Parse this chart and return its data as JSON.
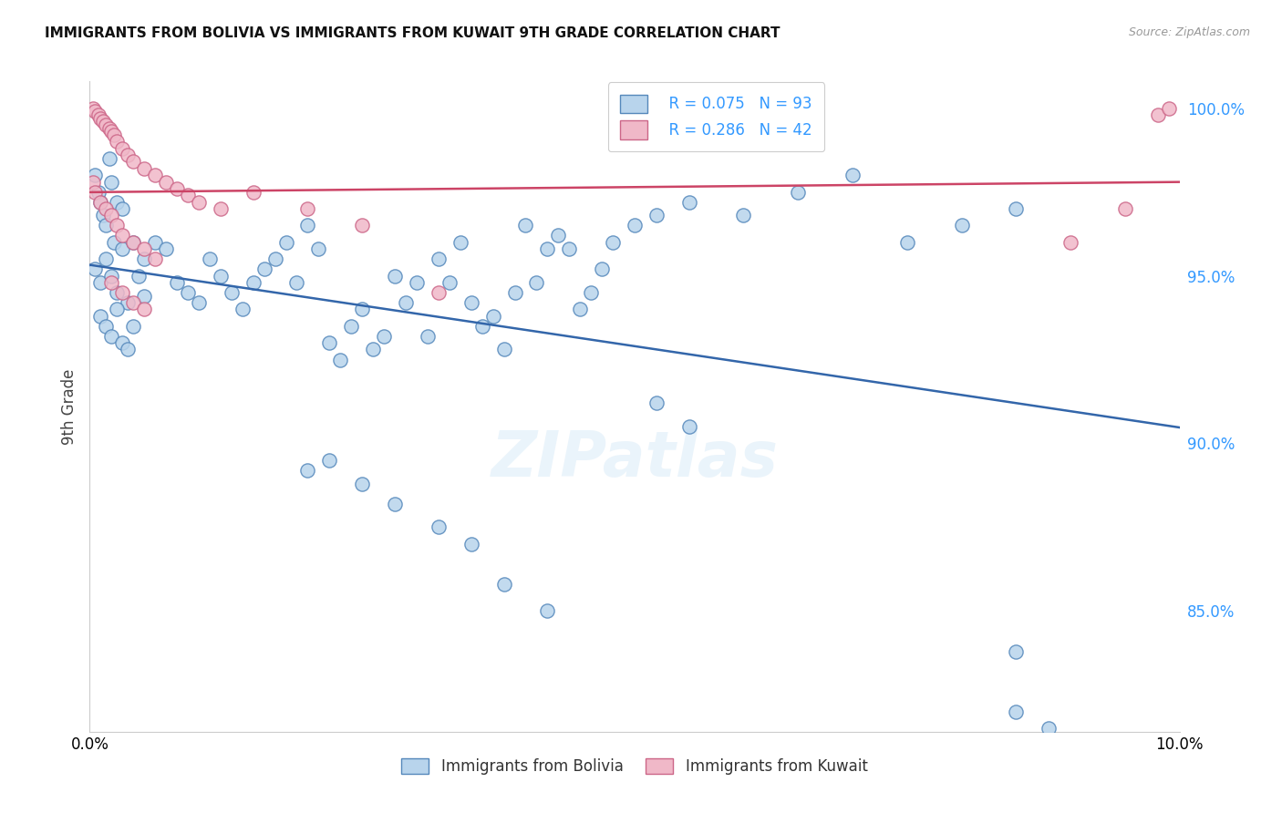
{
  "title": "IMMIGRANTS FROM BOLIVIA VS IMMIGRANTS FROM KUWAIT 9TH GRADE CORRELATION CHART",
  "source": "Source: ZipAtlas.com",
  "ylabel": "9th Grade",
  "x_min": 0.0,
  "x_max": 0.1,
  "y_min": 0.814,
  "y_max": 1.008,
  "y_ticks": [
    0.85,
    0.9,
    0.95,
    1.0
  ],
  "y_tick_labels": [
    "85.0%",
    "90.0%",
    "95.0%",
    "100.0%"
  ],
  "bolivia_color": "#b8d4ec",
  "bolivia_edge": "#5588bb",
  "bolivia_line": "#3366aa",
  "kuwait_color": "#f0b8c8",
  "kuwait_edge": "#cc6688",
  "kuwait_line": "#cc4466",
  "watermark": "ZIPatlas",
  "bolivia_R": 0.075,
  "bolivia_N": 93,
  "kuwait_R": 0.286,
  "kuwait_N": 42,
  "bolivia_x": [
    0.0005,
    0.0008,
    0.001,
    0.0012,
    0.0015,
    0.0018,
    0.002,
    0.0022,
    0.0025,
    0.003,
    0.0005,
    0.001,
    0.0015,
    0.002,
    0.0025,
    0.003,
    0.0035,
    0.004,
    0.0045,
    0.005,
    0.001,
    0.0015,
    0.002,
    0.0025,
    0.003,
    0.0035,
    0.004,
    0.005,
    0.006,
    0.007,
    0.008,
    0.009,
    0.01,
    0.011,
    0.012,
    0.013,
    0.014,
    0.015,
    0.016,
    0.017,
    0.018,
    0.019,
    0.02,
    0.021,
    0.022,
    0.023,
    0.024,
    0.025,
    0.026,
    0.027,
    0.028,
    0.029,
    0.03,
    0.031,
    0.032,
    0.033,
    0.034,
    0.035,
    0.036,
    0.037,
    0.038,
    0.039,
    0.04,
    0.041,
    0.042,
    0.043,
    0.044,
    0.045,
    0.046,
    0.047,
    0.048,
    0.05,
    0.052,
    0.055,
    0.06,
    0.065,
    0.07,
    0.075,
    0.08,
    0.085,
    0.052,
    0.055,
    0.02,
    0.022,
    0.025,
    0.028,
    0.032,
    0.035,
    0.038,
    0.042,
    0.085,
    0.085,
    0.088
  ],
  "bolivia_y": [
    0.98,
    0.975,
    0.972,
    0.968,
    0.965,
    0.985,
    0.978,
    0.96,
    0.972,
    0.97,
    0.952,
    0.948,
    0.955,
    0.95,
    0.945,
    0.958,
    0.942,
    0.96,
    0.95,
    0.944,
    0.938,
    0.935,
    0.932,
    0.94,
    0.93,
    0.928,
    0.935,
    0.955,
    0.96,
    0.958,
    0.948,
    0.945,
    0.942,
    0.955,
    0.95,
    0.945,
    0.94,
    0.948,
    0.952,
    0.955,
    0.96,
    0.948,
    0.965,
    0.958,
    0.93,
    0.925,
    0.935,
    0.94,
    0.928,
    0.932,
    0.95,
    0.942,
    0.948,
    0.932,
    0.955,
    0.948,
    0.96,
    0.942,
    0.935,
    0.938,
    0.928,
    0.945,
    0.965,
    0.948,
    0.958,
    0.962,
    0.958,
    0.94,
    0.945,
    0.952,
    0.96,
    0.965,
    0.968,
    0.972,
    0.968,
    0.975,
    0.98,
    0.96,
    0.965,
    0.97,
    0.912,
    0.905,
    0.892,
    0.895,
    0.888,
    0.882,
    0.875,
    0.87,
    0.858,
    0.85,
    0.838,
    0.82,
    0.815
  ],
  "kuwait_x": [
    0.0003,
    0.0005,
    0.0008,
    0.001,
    0.0012,
    0.0015,
    0.0018,
    0.002,
    0.0022,
    0.0025,
    0.003,
    0.0035,
    0.004,
    0.005,
    0.006,
    0.007,
    0.008,
    0.009,
    0.01,
    0.012,
    0.0003,
    0.0005,
    0.001,
    0.0015,
    0.002,
    0.0025,
    0.003,
    0.004,
    0.005,
    0.006,
    0.002,
    0.003,
    0.004,
    0.005,
    0.015,
    0.02,
    0.025,
    0.032,
    0.09,
    0.095,
    0.098,
    0.099
  ],
  "kuwait_y": [
    1.0,
    0.999,
    0.998,
    0.997,
    0.996,
    0.995,
    0.994,
    0.993,
    0.992,
    0.99,
    0.988,
    0.986,
    0.984,
    0.982,
    0.98,
    0.978,
    0.976,
    0.974,
    0.972,
    0.97,
    0.978,
    0.975,
    0.972,
    0.97,
    0.968,
    0.965,
    0.962,
    0.96,
    0.958,
    0.955,
    0.948,
    0.945,
    0.942,
    0.94,
    0.975,
    0.97,
    0.965,
    0.945,
    0.96,
    0.97,
    0.998,
    1.0
  ]
}
